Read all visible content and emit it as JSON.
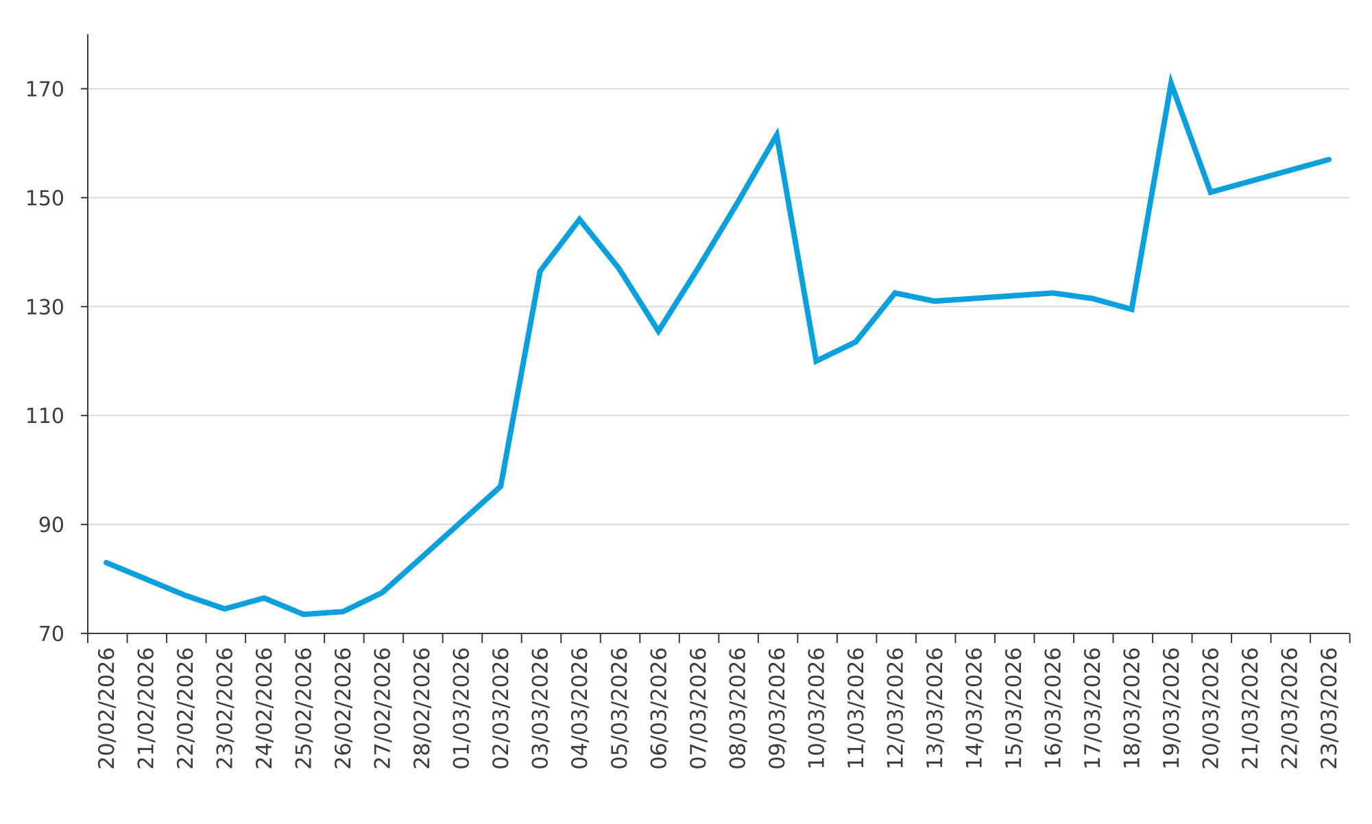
{
  "chart_data": {
    "type": "line",
    "title": "",
    "xlabel": "",
    "ylabel": "",
    "grid": true,
    "ylim": [
      70,
      180
    ],
    "yticks": [
      70,
      90,
      110,
      130,
      150,
      170
    ],
    "x": [
      "20/02/2026",
      "21/02/2026",
      "22/02/2026",
      "23/02/2026",
      "24/02/2026",
      "25/02/2026",
      "26/02/2026",
      "27/02/2026",
      "28/02/2026",
      "01/03/2026",
      "02/03/2026",
      "03/03/2026",
      "04/03/2026",
      "05/03/2026",
      "06/03/2026",
      "07/03/2026",
      "08/03/2026",
      "09/03/2026",
      "10/03/2026",
      "11/03/2026",
      "12/03/2026",
      "13/03/2026",
      "14/03/2026",
      "15/03/2026",
      "16/03/2026",
      "17/03/2026",
      "18/03/2026",
      "19/03/2026",
      "20/03/2026",
      "21/03/2026",
      "22/03/2026",
      "23/03/2026"
    ],
    "series": [
      {
        "color": "#0aa0de",
        "values": [
          83,
          80,
          77,
          74.5,
          76.5,
          73.5,
          74,
          77.5,
          84,
          90.5,
          97,
          136.5,
          146,
          137,
          125.5,
          137,
          149,
          161.5,
          120,
          123.5,
          132.5,
          131,
          131.5,
          132,
          132.5,
          131.5,
          129.5,
          171,
          151,
          153,
          155,
          157
        ]
      }
    ]
  }
}
